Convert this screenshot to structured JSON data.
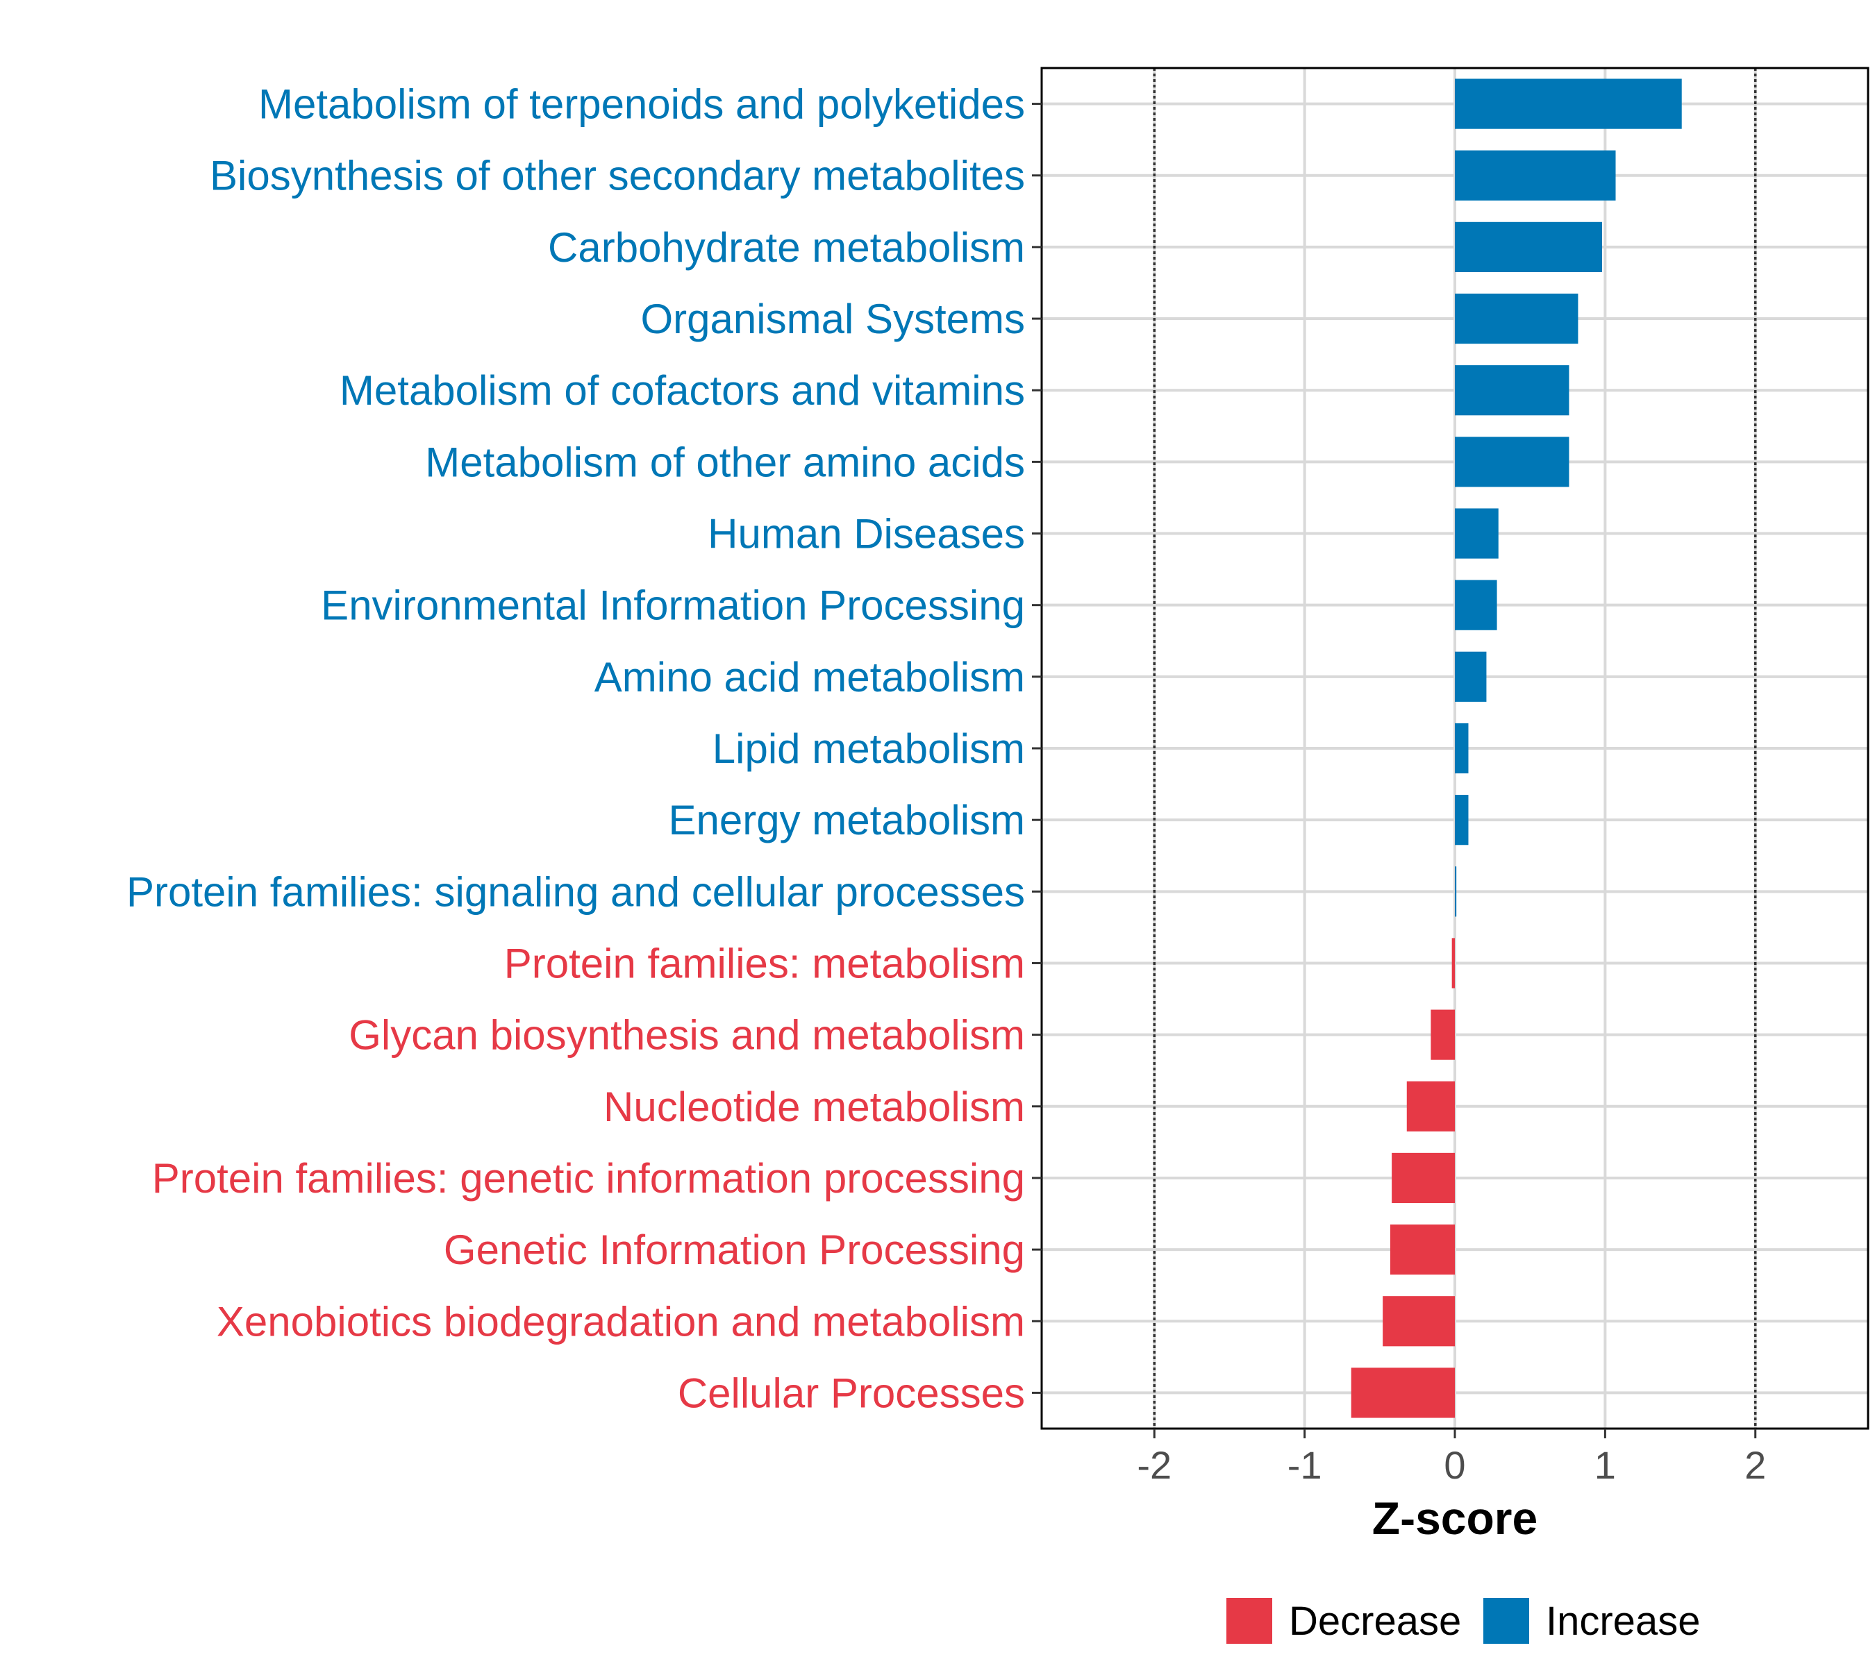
{
  "colors": {
    "increase": "#0077B6",
    "decrease": "#E63946",
    "grid": "#d9d9d9",
    "panel_border": "#000000",
    "ref_line": "#333333"
  },
  "chart_data": {
    "type": "bar",
    "orientation": "horizontal",
    "xlabel": "Z-score",
    "xlim": [
      -2.75,
      2.75
    ],
    "xticks": [
      -2,
      -1,
      0,
      1,
      2
    ],
    "xtick_labels": [
      "-2",
      "-1",
      "0",
      "1",
      "2"
    ],
    "reference_lines": [
      -2,
      2
    ],
    "grid": true,
    "legend_position": "bottom",
    "legend": [
      {
        "key": "decrease",
        "label": "Decrease"
      },
      {
        "key": "increase",
        "label": "Increase"
      }
    ],
    "categories": [
      "Metabolism of terpenoids and polyketides",
      "Biosynthesis of other secondary metabolites",
      "Carbohydrate metabolism",
      "Organismal Systems",
      "Metabolism of cofactors and vitamins",
      "Metabolism of other amino acids",
      "Human Diseases",
      "Environmental Information Processing",
      "Amino acid metabolism",
      "Lipid metabolism",
      "Energy metabolism",
      "Protein families: signaling and cellular processes",
      "Protein families: metabolism",
      "Glycan biosynthesis and metabolism",
      "Nucleotide metabolism",
      "Protein families: genetic information processing",
      "Genetic Information Processing",
      "Xenobiotics biodegradation and metabolism",
      "Cellular Processes"
    ],
    "values": [
      1.51,
      1.07,
      0.98,
      0.82,
      0.76,
      0.76,
      0.29,
      0.28,
      0.21,
      0.09,
      0.09,
      0.01,
      -0.02,
      -0.16,
      -0.32,
      -0.42,
      -0.43,
      -0.48,
      -0.69
    ],
    "groups": [
      "increase",
      "increase",
      "increase",
      "increase",
      "increase",
      "increase",
      "increase",
      "increase",
      "increase",
      "increase",
      "increase",
      "increase",
      "decrease",
      "decrease",
      "decrease",
      "decrease",
      "decrease",
      "decrease",
      "decrease"
    ]
  }
}
